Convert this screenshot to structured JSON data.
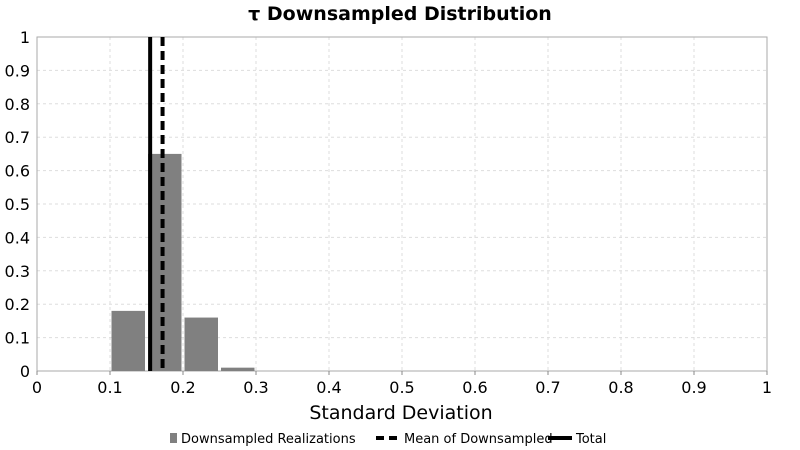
{
  "chart_data": {
    "type": "bar",
    "title": "τ Downsampled Distribution",
    "xlabel": "Standard Deviation",
    "ylabel": "",
    "xlim": [
      0,
      1
    ],
    "ylim": [
      0,
      1
    ],
    "xticks": [
      "0",
      "0.1",
      "0.2",
      "0.3",
      "0.4",
      "0.5",
      "0.6",
      "0.7",
      "0.8",
      "0.9",
      "1"
    ],
    "yticks": [
      "0",
      "0.1",
      "0.2",
      "0.3",
      "0.4",
      "0.5",
      "0.6",
      "0.7",
      "0.8",
      "0.9",
      "1"
    ],
    "grid": true,
    "legend_position": "bottom",
    "series": [
      {
        "name": "Downsampled Realizations",
        "kind": "histogram",
        "color": "#808080",
        "bins": [
          {
            "x0": 0.1,
            "x1": 0.15,
            "value": 0.18
          },
          {
            "x0": 0.15,
            "x1": 0.2,
            "value": 0.65
          },
          {
            "x0": 0.2,
            "x1": 0.25,
            "value": 0.16
          },
          {
            "x0": 0.25,
            "x1": 0.3,
            "value": 0.01
          }
        ]
      },
      {
        "name": "Mean of Downsampled",
        "kind": "vline",
        "style": "dashed",
        "color": "#000000",
        "x": 0.172
      },
      {
        "name": "Total",
        "kind": "vline",
        "style": "solid",
        "color": "#000000",
        "x": 0.155
      }
    ]
  }
}
